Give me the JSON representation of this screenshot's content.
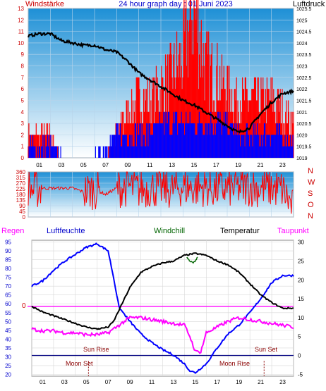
{
  "chart_data": [
    {
      "type": "line",
      "title": "24 hour graph day : 01 Juni 2023",
      "left_axis_label": "Windstärke",
      "right_axis_label": "Luftdruck",
      "x_tick_labels": [
        "01",
        "03",
        "05",
        "07",
        "09",
        "11",
        "13",
        "15",
        "17",
        "19",
        "21",
        "23"
      ],
      "left_ticks": [
        0,
        1,
        2,
        3,
        4,
        5,
        6,
        7,
        8,
        9,
        10,
        11,
        12,
        13
      ],
      "right_ticks": [
        "1019",
        "1019.5",
        "1020",
        "1020.5",
        "1021",
        "1021.5",
        "1022",
        "1022.5",
        "1023",
        "1023.5",
        "1024",
        "1024.5",
        "1025",
        "1025.5"
      ],
      "ylim_left": [
        0,
        13
      ],
      "ylim_right": [
        1019,
        1025.5
      ],
      "series": [
        {
          "name": "Luftdruck",
          "color": "#000000",
          "x": [
            0,
            1,
            2,
            3,
            4,
            5,
            6,
            7,
            8,
            9,
            10,
            11,
            12,
            13,
            14,
            15,
            16,
            17,
            18,
            19,
            20,
            21,
            22,
            23,
            24
          ],
          "values": [
            1024.3,
            1024.4,
            1024.4,
            1024.1,
            1024.0,
            1023.9,
            1023.9,
            1023.7,
            1023.6,
            1023.2,
            1022.7,
            1022.4,
            1022.1,
            1021.8,
            1021.5,
            1021.3,
            1021.0,
            1020.7,
            1020.4,
            1020.1,
            1020.3,
            1020.9,
            1021.4,
            1021.8,
            1021.9
          ]
        },
        {
          "name": "Windböen",
          "color": "#ff0000",
          "x": [
            0,
            1,
            2,
            3,
            4,
            5,
            6,
            7,
            7.5,
            8,
            8.5,
            9,
            10,
            11,
            12,
            13,
            14,
            15,
            16,
            17,
            18,
            19,
            20,
            21,
            22,
            23,
            24
          ],
          "values": [
            2,
            2,
            2,
            0,
            0,
            0,
            0,
            0,
            1,
            2,
            3,
            4,
            5,
            5,
            6,
            7,
            9,
            13,
            8,
            7,
            6,
            5,
            5,
            5,
            5,
            4,
            3
          ]
        },
        {
          "name": "Wind",
          "color": "#0000ff",
          "x": [
            0,
            1,
            2,
            3,
            4,
            5,
            6,
            7,
            8,
            9,
            10,
            11,
            12,
            13,
            14,
            15,
            16,
            17,
            18,
            19,
            20,
            21,
            22,
            23,
            24
          ],
          "values": [
            1,
            1,
            1,
            0,
            0,
            0,
            0,
            1,
            2,
            2,
            2,
            2,
            3,
            3,
            3,
            3,
            3,
            3,
            3,
            2,
            2,
            2,
            2,
            2,
            1
          ]
        }
      ]
    },
    {
      "type": "line",
      "title": "",
      "left_ticks": [
        0,
        45,
        90,
        135,
        180,
        225,
        270,
        315,
        360
      ],
      "right_labels": [
        "N",
        "W",
        "S",
        "O",
        "N"
      ],
      "ylim": [
        0,
        360
      ],
      "series": [
        {
          "name": "Windrichtung",
          "color": "#ff0000",
          "x": [
            0,
            0.5,
            1,
            2,
            3,
            4,
            5,
            6,
            7,
            8,
            9,
            10,
            11,
            12,
            13,
            14,
            15,
            16,
            17,
            18,
            19,
            20,
            21,
            22,
            23,
            24
          ],
          "values": [
            240,
            210,
            230,
            230,
            230,
            230,
            200,
            220,
            180,
            230,
            240,
            220,
            230,
            230,
            220,
            240,
            230,
            240,
            220,
            230,
            230,
            240,
            230,
            230,
            220,
            60
          ]
        }
      ]
    },
    {
      "type": "line",
      "title": "",
      "legend": [
        "Regen",
        "Luftfeuchte",
        "Windchill",
        "Temperatur",
        "Taupunkt"
      ],
      "legend_colors": [
        "#ff00ff",
        "#0000ff",
        "#006400",
        "#000000",
        "#ff00ff"
      ],
      "left_ticks": [
        20,
        25,
        30,
        35,
        40,
        45,
        50,
        55,
        60,
        65,
        70,
        75,
        80,
        85,
        90,
        95
      ],
      "right_ticks": [
        -5,
        0,
        5,
        10,
        15,
        20,
        25,
        30
      ],
      "ylim_left": [
        19,
        96
      ],
      "ylim_right": [
        -5.5,
        30.5
      ],
      "zero_label": "0",
      "sun_rise": "Sun Rise",
      "sun_set": "Sun Set",
      "moon_set": "Moon Set",
      "moon_rise": "Moon Rise",
      "series": [
        {
          "name": "Luftfeuchte",
          "color": "#0000ff",
          "axis": "left",
          "x": [
            0,
            1,
            2,
            3,
            4,
            5,
            6,
            7,
            7.5,
            8,
            9,
            10,
            11,
            12,
            13,
            14,
            14.5,
            15,
            16,
            17,
            18,
            19,
            20,
            21,
            22,
            23,
            24
          ],
          "values": [
            70,
            73,
            79,
            84,
            88,
            92,
            94,
            90,
            75,
            58,
            50,
            43,
            38,
            34,
            31,
            26,
            22,
            21,
            26,
            35,
            43,
            48,
            55,
            63,
            72,
            76,
            76
          ]
        },
        {
          "name": "Temperatur",
          "color": "#000000",
          "axis": "right",
          "x": [
            0,
            1,
            2,
            3,
            4,
            5,
            6,
            7,
            7.5,
            8,
            9,
            10,
            11,
            12,
            13,
            14,
            15,
            16,
            17,
            18,
            19,
            20,
            21,
            22,
            23,
            24
          ],
          "values": [
            13,
            11.5,
            10.5,
            9.5,
            8.5,
            7.5,
            7,
            7.5,
            9,
            12,
            18,
            22,
            23.5,
            24.5,
            25,
            26.5,
            27,
            26.5,
            25,
            24,
            22,
            19,
            16,
            14,
            12.5,
            12.5
          ]
        },
        {
          "name": "Windchill",
          "color": "#006400",
          "axis": "right",
          "x": [
            14.2,
            14.5,
            14.8,
            15,
            15.2
          ],
          "values": [
            26,
            25,
            24.5,
            25,
            26
          ]
        },
        {
          "name": "Taupunkt",
          "color": "#ff00ff",
          "axis": "right",
          "x": [
            0,
            1,
            2,
            3,
            4,
            5,
            6,
            7,
            8,
            9,
            10,
            11,
            12,
            13,
            14,
            14.5,
            15,
            15.5,
            16,
            17,
            18,
            19,
            20,
            21,
            22,
            23,
            24
          ],
          "values": [
            7,
            6.5,
            6.5,
            6,
            6,
            5.5,
            5.5,
            6,
            8,
            10,
            10,
            9.5,
            9,
            8.5,
            8,
            5,
            1,
            1,
            6,
            7.5,
            9,
            10,
            9.5,
            9,
            8.5,
            8,
            7.5
          ]
        }
      ]
    }
  ],
  "colors": {
    "axis_red": "#cc0000",
    "legend_blue": "#0000cc",
    "gradient_top": "#1e90d6",
    "gradient_bottom": "#ffffff"
  }
}
